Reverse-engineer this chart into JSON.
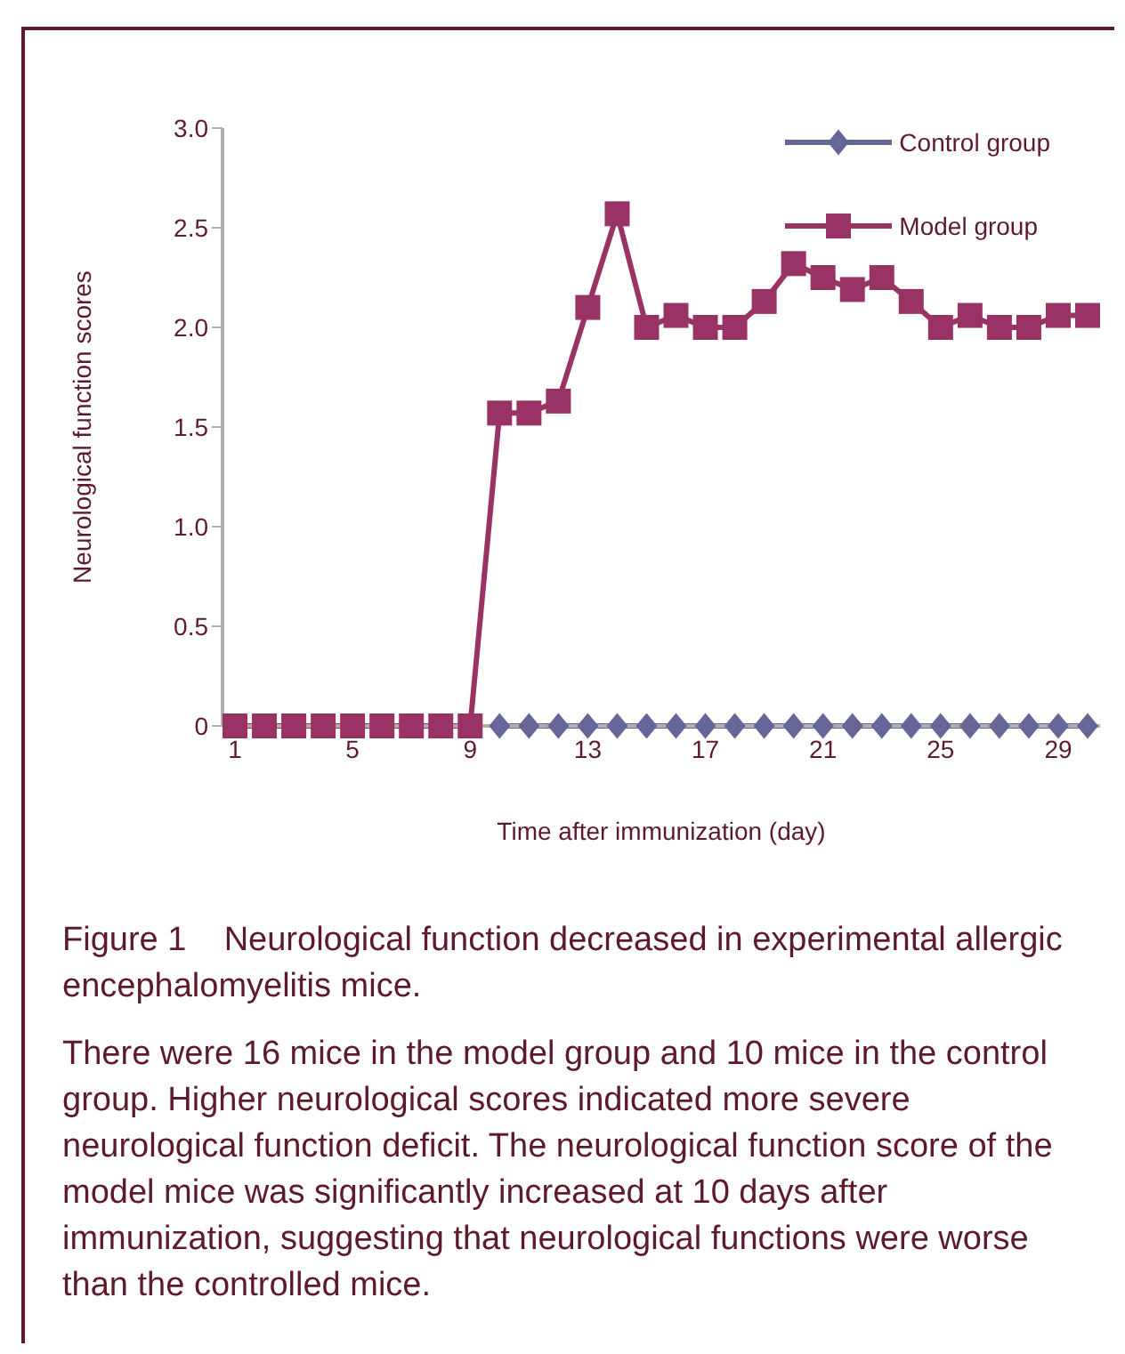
{
  "chart_data": {
    "type": "line",
    "xlabel": "Time after immunization (day)",
    "ylabel": "Neurological function scores",
    "categories": [
      "1",
      null,
      null,
      null,
      "5",
      null,
      null,
      null,
      "9",
      null,
      null,
      null,
      "13",
      null,
      null,
      null,
      "17",
      null,
      null,
      null,
      "21",
      null,
      null,
      null,
      "25",
      null,
      null,
      null,
      "29",
      null
    ],
    "series": [
      {
        "name": "Control group",
        "color": "#666699",
        "marker": "diamond",
        "values": [
          null,
          null,
          null,
          null,
          null,
          null,
          null,
          null,
          null,
          0,
          0,
          0,
          0,
          0,
          0,
          0,
          0,
          0,
          0,
          0,
          0,
          0,
          0,
          0,
          0,
          0,
          0,
          0,
          0,
          0
        ]
      },
      {
        "name": "Model group",
        "color": "#993366",
        "marker": "square",
        "values": [
          0,
          0,
          0,
          0,
          0,
          0,
          0,
          0,
          0,
          1.57,
          1.57,
          1.63,
          2.1,
          2.57,
          2.0,
          2.06,
          2.0,
          2.0,
          2.13,
          2.32,
          2.25,
          2.19,
          2.25,
          2.13,
          2.0,
          2.06,
          2.0,
          2.0,
          2.06,
          2.06
        ]
      }
    ],
    "ylim": [
      0,
      3
    ],
    "yticks": [
      0,
      0.5,
      {
        "value": 1,
        "label": "1.0"
      },
      1.5,
      {
        "value": 2,
        "label": "2.0"
      },
      2.5,
      {
        "value": 3,
        "label": "3.0"
      }
    ],
    "grid": false,
    "legend": "top right",
    "annotations": [
      "Figure 1    Neurological function decreased in experimental allergic encephalomyelitis mice.",
      "There were 16 mice in the model group and 10 mice in the control group. Higher neurological scores indicated more severe neurological function deficit. The neurological function score of the model mice was significantly increased at 10 days after immunization, suggesting that neurological functions were worse than the controlled mice."
    ]
  }
}
